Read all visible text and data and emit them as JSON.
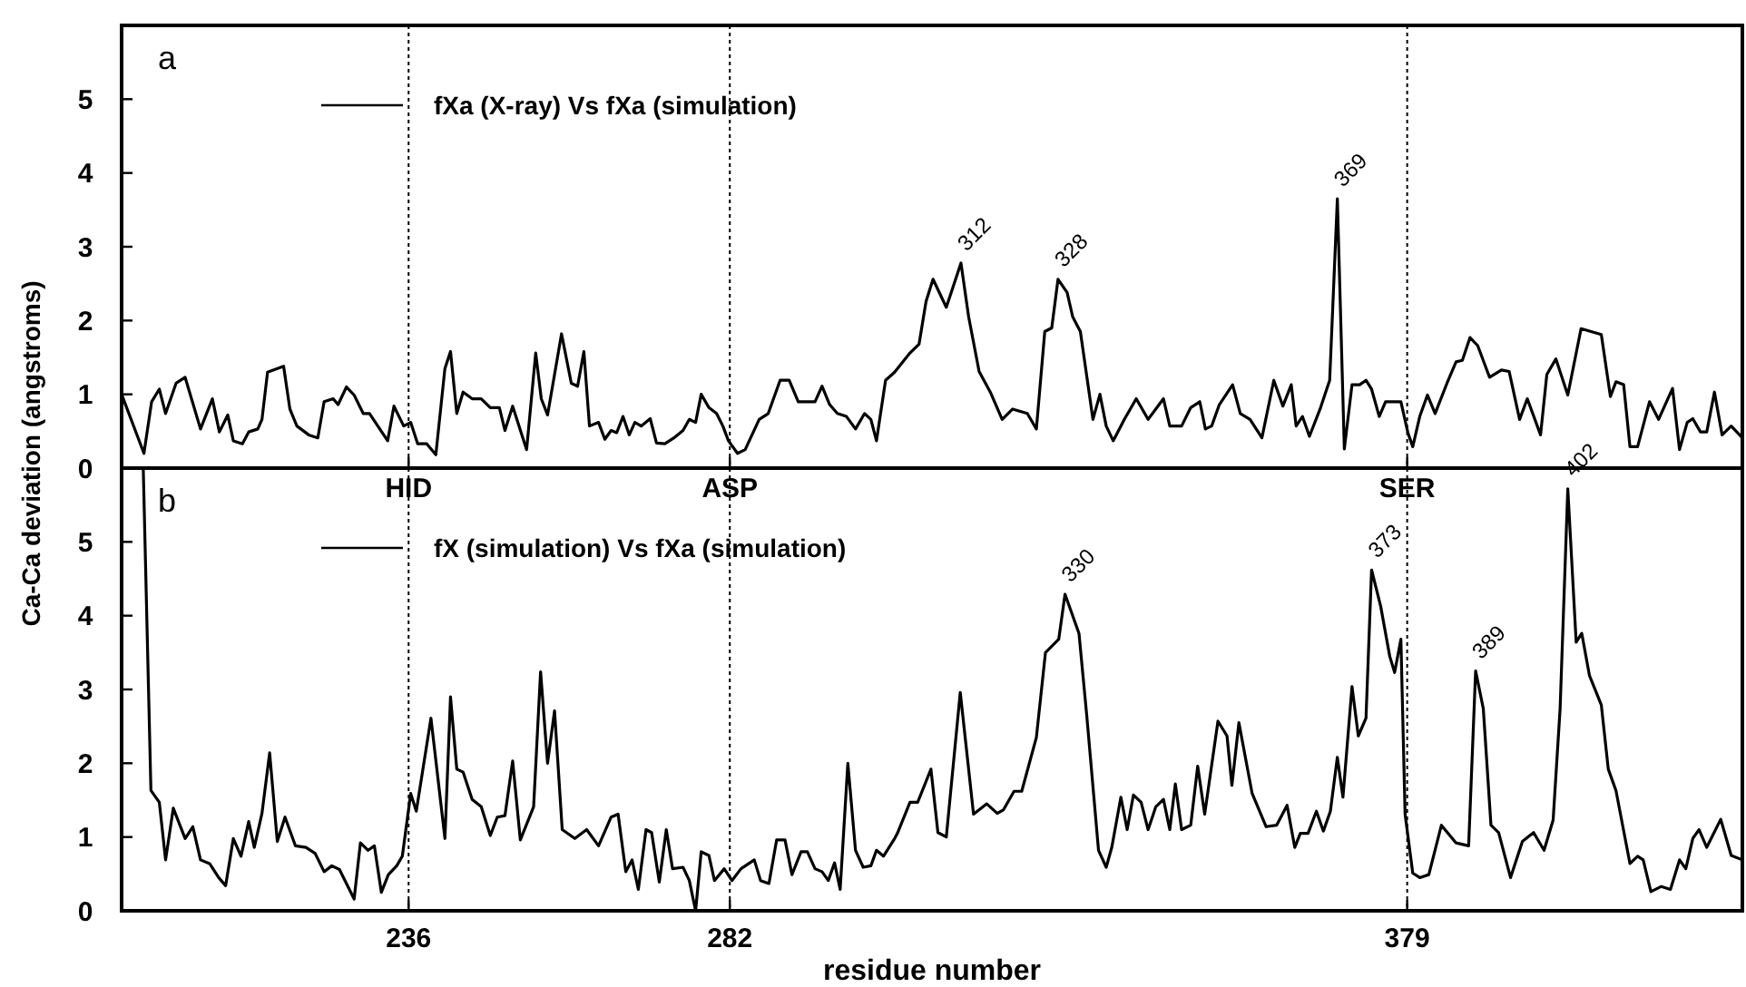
{
  "chart_data": [
    {
      "type": "line",
      "title": "a",
      "ylabel": "Ca-Ca deviation (angstroms)",
      "xlim": [
        194.9,
        427
      ],
      "xticks": [
        236,
        282,
        379
      ],
      "ylim": [
        0,
        6
      ],
      "yticks": [
        0,
        1,
        2,
        3,
        4,
        5
      ],
      "tick_labels": "y",
      "legend": "top left",
      "line_style": "solid",
      "ref_lines": [
        {
          "axis": "x",
          "value": 236,
          "line_style": "dotted"
        },
        {
          "axis": "x",
          "value": 282,
          "line_style": "dotted"
        },
        {
          "axis": "x",
          "value": 379,
          "line_style": "dotted"
        }
      ],
      "annotations": [
        {
          "text": "312",
          "x": 315.1,
          "y": 2.78
        },
        {
          "text": "328",
          "x": 329.0,
          "y": 2.56
        },
        {
          "text": "369",
          "x": 369.0,
          "y": 3.65
        }
      ],
      "x": [
        194.9,
        198.1,
        199.2,
        200.3,
        201.2,
        202.7,
        204.0,
        206.2,
        207.9,
        208.9,
        210.1,
        210.9,
        212.2,
        213.1,
        214.4,
        215.0,
        215.8,
        218.1,
        219.0,
        220.0,
        221.7,
        223.0,
        223.9,
        225.2,
        225.9,
        227.1,
        228.2,
        229.5,
        230.4,
        233.0,
        233.9,
        235.3,
        236.3,
        237.3,
        238.6,
        239.9,
        241.2,
        242.0,
        242.9,
        243.8,
        245.1,
        246.4,
        247.7,
        249.0,
        249.8,
        250.9,
        252.9,
        254.2,
        255.0,
        255.9,
        257.9,
        259.3,
        260.2,
        261.1,
        261.9,
        263.2,
        264.1,
        265.0,
        265.8,
        266.7,
        267.6,
        268.4,
        269.3,
        270.6,
        271.5,
        272.7,
        274.0,
        275.3,
        276.2,
        277.1,
        277.9,
        279.0,
        280.1,
        281.0,
        281.8,
        283.1,
        284.2,
        286.2,
        287.5,
        289.2,
        290.5,
        291.8,
        293.1,
        294.2,
        295.2,
        296.3,
        297.4,
        298.7,
        300.0,
        301.3,
        302.2,
        303.0,
        304.3,
        305.6,
        307.8,
        309.1,
        310.1,
        311.1,
        313.0,
        315.1,
        316.2,
        317.7,
        319.3,
        321.0,
        322.5,
        324.6,
        325.9,
        327.1,
        328.1,
        329.0,
        330.3,
        331.1,
        332.2,
        334.0,
        335.0,
        335.9,
        336.9,
        338.5,
        340.2,
        341.9,
        344.1,
        345.0,
        346.7,
        348.0,
        349.3,
        350.1,
        351.0,
        352.1,
        354.0,
        355.1,
        356.5,
        358.2,
        359.9,
        361.2,
        362.4,
        363.1,
        364.0,
        365.0,
        366.6,
        367.9,
        369.0,
        370.0,
        371.1,
        372.2,
        373.1,
        373.9,
        375.0,
        375.9,
        378.1,
        379.1,
        379.8,
        380.8,
        381.9,
        383.0,
        384.7,
        386.0,
        386.9,
        388.0,
        389.1,
        390.8,
        392.5,
        393.6,
        395.1,
        396.2,
        398.1,
        399.0,
        400.3,
        402.0,
        403.9,
        406.8,
        408.1,
        408.9,
        410.0,
        410.9,
        412.0,
        413.7,
        415.0,
        417.0,
        418.0,
        419.1,
        419.9,
        421.0,
        421.9,
        423.0,
        424.1,
        425.4,
        427.0
      ],
      "series": [
        {
          "name": "fXa (X-ray) Vs fXa (simulation)",
          "color": "#000000",
          "values": [
            1.0,
            0.2,
            0.9,
            1.07,
            0.74,
            1.15,
            1.23,
            0.53,
            0.94,
            0.49,
            0.72,
            0.37,
            0.33,
            0.49,
            0.53,
            0.66,
            1.3,
            1.38,
            0.8,
            0.57,
            0.45,
            0.41,
            0.9,
            0.94,
            0.86,
            1.1,
            0.99,
            0.74,
            0.74,
            0.37,
            0.84,
            0.57,
            0.62,
            0.33,
            0.33,
            0.18,
            1.35,
            1.58,
            0.74,
            1.03,
            0.94,
            0.94,
            0.82,
            0.82,
            0.51,
            0.84,
            0.25,
            1.56,
            0.94,
            0.72,
            1.82,
            1.15,
            1.11,
            1.58,
            0.57,
            0.62,
            0.39,
            0.51,
            0.48,
            0.7,
            0.45,
            0.62,
            0.57,
            0.67,
            0.34,
            0.33,
            0.41,
            0.51,
            0.66,
            0.62,
            1.0,
            0.82,
            0.74,
            0.57,
            0.37,
            0.2,
            0.25,
            0.66,
            0.74,
            1.19,
            1.19,
            0.9,
            0.9,
            0.9,
            1.11,
            0.86,
            0.74,
            0.7,
            0.53,
            0.74,
            0.66,
            0.37,
            1.19,
            1.3,
            1.56,
            1.68,
            2.26,
            2.56,
            2.18,
            2.78,
            2.05,
            1.31,
            1.03,
            0.66,
            0.8,
            0.74,
            0.53,
            1.85,
            1.9,
            2.56,
            2.38,
            2.05,
            1.85,
            0.66,
            1.0,
            0.57,
            0.37,
            0.66,
            0.94,
            0.66,
            0.94,
            0.57,
            0.57,
            0.82,
            0.9,
            0.53,
            0.57,
            0.86,
            1.13,
            0.74,
            0.66,
            0.41,
            1.19,
            0.84,
            1.13,
            0.57,
            0.7,
            0.43,
            0.82,
            1.19,
            3.65,
            0.26,
            1.13,
            1.13,
            1.19,
            1.07,
            0.7,
            0.9,
            0.9,
            0.48,
            0.29,
            0.7,
            0.99,
            0.74,
            1.15,
            1.44,
            1.46,
            1.77,
            1.66,
            1.23,
            1.33,
            1.31,
            0.66,
            0.94,
            0.45,
            1.27,
            1.48,
            0.99,
            1.89,
            1.81,
            0.97,
            1.17,
            1.13,
            0.29,
            0.29,
            0.9,
            0.66,
            1.08,
            0.25,
            0.62,
            0.67,
            0.49,
            0.49,
            1.03,
            0.45,
            0.57,
            0.41
          ]
        }
      ]
    },
    {
      "type": "line",
      "title": "b",
      "xlabel": "residue number",
      "xlim": [
        194.9,
        427
      ],
      "xticks": [
        236,
        282,
        379
      ],
      "ylim": [
        0,
        6
      ],
      "yticks": [
        0,
        1,
        2,
        3,
        4,
        5
      ],
      "legend": "top left",
      "line_style": "solid",
      "ref_lines": [
        {
          "axis": "x",
          "value": 236,
          "label": "HID",
          "line_style": "dotted"
        },
        {
          "axis": "x",
          "value": 282,
          "label": "ASP",
          "line_style": "dotted"
        },
        {
          "axis": "x",
          "value": 379,
          "label": "SER",
          "line_style": "dotted"
        }
      ],
      "annotations": [
        {
          "text": "330",
          "x": 330.0,
          "y": 4.29
        },
        {
          "text": "373",
          "x": 373.9,
          "y": 4.62
        },
        {
          "text": "389",
          "x": 388.8,
          "y": 3.25
        },
        {
          "text": "402",
          "x": 402.0,
          "y": 5.72
        }
      ],
      "x": [
        198.0,
        199.1,
        200.3,
        201.2,
        202.3,
        204.0,
        205.1,
        206.2,
        207.5,
        208.8,
        209.8,
        210.9,
        212.0,
        213.1,
        213.9,
        215.0,
        216.1,
        217.2,
        218.3,
        219.8,
        221.3,
        222.6,
        223.9,
        225.0,
        226.1,
        228.2,
        229.1,
        230.2,
        231.1,
        232.1,
        233.1,
        234.3,
        235.1,
        236.3,
        237.1,
        239.2,
        241.2,
        242.0,
        242.9,
        243.8,
        245.1,
        246.4,
        247.7,
        248.7,
        249.8,
        250.9,
        252.0,
        253.9,
        254.9,
        255.9,
        256.9,
        258.0,
        259.8,
        261.5,
        263.2,
        265.0,
        266.0,
        267.1,
        268.0,
        268.9,
        270.0,
        270.8,
        271.9,
        272.9,
        273.8,
        275.3,
        276.2,
        277.1,
        277.9,
        279.0,
        279.8,
        281.2,
        282.3,
        283.6,
        285.5,
        286.4,
        287.6,
        288.7,
        289.9,
        290.9,
        292.2,
        293.1,
        294.2,
        295.2,
        296.1,
        297.0,
        297.8,
        298.9,
        300.0,
        301.1,
        302.2,
        303.0,
        304.0,
        305.6,
        306.0,
        307.8,
        308.9,
        310.8,
        311.8,
        313.0,
        315.0,
        316.9,
        318.8,
        320.3,
        321.2,
        322.7,
        323.8,
        325.9,
        327.2,
        329.1,
        330.0,
        332.0,
        333.1,
        334.8,
        335.9,
        336.7,
        338.0,
        338.9,
        339.8,
        340.9,
        341.9,
        343.0,
        344.1,
        345.0,
        345.8,
        346.7,
        348.0,
        349.0,
        350.0,
        351.9,
        353.2,
        353.9,
        354.9,
        356.8,
        358.8,
        360.3,
        361.8,
        362.9,
        363.7,
        364.8,
        366.0,
        367.0,
        368.0,
        369.0,
        369.8,
        371.1,
        372.0,
        373.1,
        373.9,
        375.2,
        376.5,
        377.2,
        378.1,
        378.7,
        379.8,
        380.8,
        382.1,
        383.9,
        386.0,
        387.8,
        388.8,
        389.9,
        391.0,
        392.1,
        393.8,
        395.5,
        397.1,
        398.6,
        399.9,
        400.9,
        402.0,
        403.2,
        404.0,
        405.1,
        406.8,
        407.8,
        408.9,
        410.9,
        412.0,
        412.8,
        413.9,
        415.4,
        416.7,
        418.0,
        418.9,
        419.9,
        420.8,
        421.9,
        423.9,
        425.4,
        427.0
      ],
      "series": [
        {
          "name": "fX (simulation) Vs fXa (simulation)",
          "color": "#000000",
          "values": [
            6.0,
            1.63,
            1.47,
            0.69,
            1.39,
            0.98,
            1.14,
            0.69,
            0.64,
            0.45,
            0.34,
            0.98,
            0.74,
            1.21,
            0.86,
            1.32,
            2.14,
            0.94,
            1.27,
            0.88,
            0.86,
            0.78,
            0.53,
            0.61,
            0.56,
            0.16,
            0.92,
            0.82,
            0.88,
            0.25,
            0.49,
            0.61,
            0.74,
            1.59,
            1.35,
            2.61,
            0.98,
            2.9,
            1.92,
            1.88,
            1.51,
            1.41,
            1.02,
            1.27,
            1.29,
            2.03,
            0.96,
            1.41,
            3.24,
            2.0,
            2.71,
            1.1,
            0.98,
            1.1,
            0.88,
            1.27,
            1.31,
            0.53,
            0.69,
            0.29,
            1.1,
            1.06,
            0.39,
            1.1,
            0.57,
            0.59,
            0.41,
            0.0,
            0.8,
            0.75,
            0.41,
            0.57,
            0.41,
            0.57,
            0.69,
            0.41,
            0.37,
            0.96,
            0.96,
            0.49,
            0.8,
            0.8,
            0.57,
            0.53,
            0.41,
            0.65,
            0.29,
            2.0,
            0.82,
            0.59,
            0.61,
            0.82,
            0.74,
            0.98,
            1.05,
            1.47,
            1.47,
            1.92,
            1.06,
            1.0,
            2.96,
            1.31,
            1.45,
            1.32,
            1.37,
            1.62,
            1.62,
            2.35,
            3.5,
            3.68,
            4.29,
            3.76,
            2.66,
            0.82,
            0.59,
            0.86,
            1.54,
            1.1,
            1.57,
            1.47,
            1.1,
            1.41,
            1.51,
            1.1,
            1.72,
            1.1,
            1.16,
            1.96,
            1.31,
            2.57,
            2.37,
            1.7,
            2.55,
            1.59,
            1.14,
            1.16,
            1.43,
            0.86,
            1.05,
            1.05,
            1.35,
            1.08,
            1.35,
            2.08,
            1.54,
            3.04,
            2.37,
            2.61,
            4.62,
            4.13,
            3.45,
            3.23,
            3.68,
            1.31,
            0.51,
            0.45,
            0.49,
            1.16,
            0.92,
            0.88,
            3.25,
            2.74,
            1.16,
            1.06,
            0.45,
            0.94,
            1.06,
            0.82,
            1.23,
            2.74,
            5.72,
            3.64,
            3.76,
            3.19,
            2.79,
            1.92,
            1.63,
            0.64,
            0.74,
            0.69,
            0.26,
            0.33,
            0.29,
            0.69,
            0.57,
            0.98,
            1.1,
            0.86,
            1.24,
            0.75,
            0.69
          ]
        }
      ]
    }
  ]
}
